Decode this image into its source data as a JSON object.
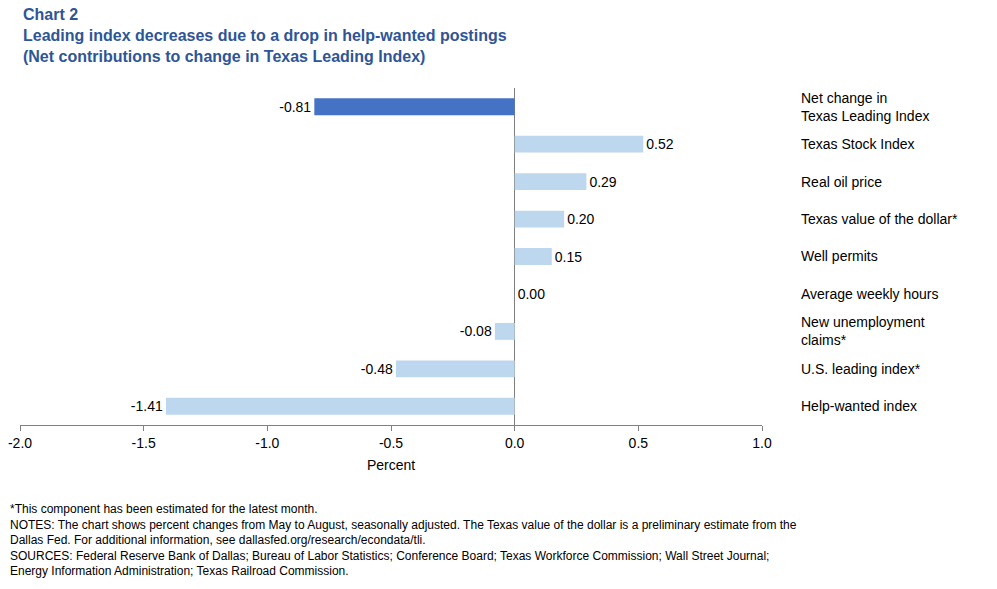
{
  "chart_data": {
    "type": "bar",
    "orientation": "horizontal",
    "title": "Chart 2\nLeading index decreases due to a drop in help-wanted postings\n(Net contributions to change in Texas Leading Index)",
    "x_label": "Percent",
    "categories": [
      "Net change in\nTexas Leading Index",
      "Texas Stock Index",
      "Real oil price",
      "Texas value of the dollar*",
      "Well permits",
      "Average weekly hours",
      "New unemployment\nclaims*",
      "U.S. leading index*",
      "Help-wanted index"
    ],
    "values": [
      -0.81,
      0.52,
      0.29,
      0.2,
      0.15,
      0.0,
      -0.08,
      -0.48,
      -1.41
    ],
    "value_labels": [
      "-0.81",
      "0.52",
      "0.29",
      "0.20",
      "0.15",
      "0.00",
      "-0.08",
      "-0.48",
      "-1.41"
    ],
    "colors": [
      "#4472c4",
      "#bdd7ee",
      "#bdd7ee",
      "#bdd7ee",
      "#bdd7ee",
      "#bdd7ee",
      "#bdd7ee",
      "#bdd7ee",
      "#bdd7ee"
    ],
    "data_labels": true,
    "grid": false,
    "xlim": [
      -2.0,
      1.0
    ],
    "xticks": [
      {
        "value": -2.0,
        "label": "-2.0"
      },
      {
        "value": -1.5,
        "label": "-1.5"
      },
      {
        "value": -1.0,
        "label": "-1.0"
      },
      {
        "value": -0.5,
        "label": "-0.5"
      },
      {
        "value": 0.0,
        "label": "0.0"
      },
      {
        "value": 0.5,
        "label": "0.5"
      },
      {
        "value": 1.0,
        "label": "1.0"
      }
    ],
    "notes": [
      "*This component has been estimated for the latest month.",
      "NOTES: The chart shows percent changes from May to August, seasonally adjusted. The Texas value of the dollar is a preliminary estimate from the",
      "Dallas Fed. For additional information, see dallasfed.org/research/econdata/tli.",
      "SOURCES: Federal Reserve Bank of Dallas; Bureau of Labor Statistics; Conference Board; Texas Workforce Commission; Wall Street Journal;",
      "Energy Information Administration; Texas Railroad Commission."
    ]
  }
}
